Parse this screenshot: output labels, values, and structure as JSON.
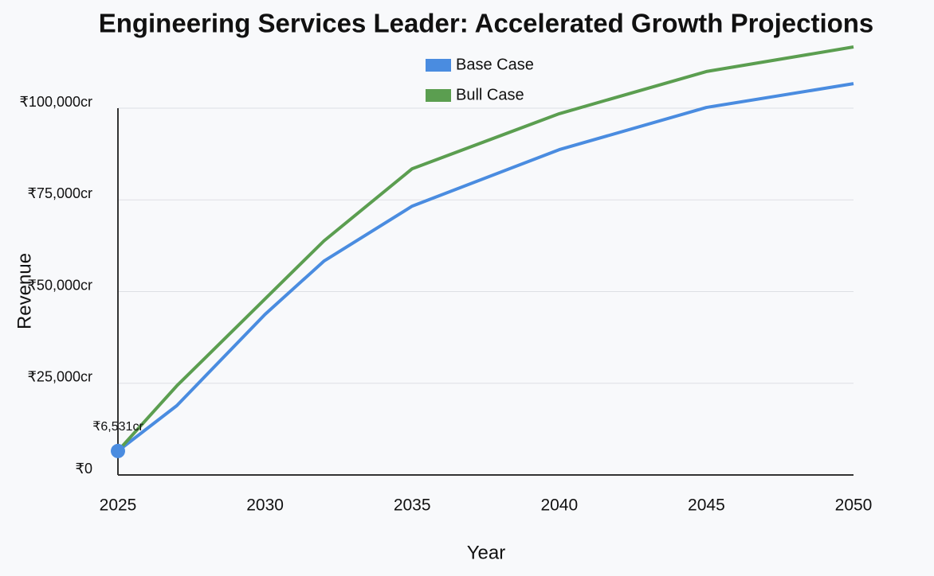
{
  "chart_data": {
    "type": "line",
    "title": "Engineering Services Leader: Accelerated Growth Projections",
    "x_label": "Year",
    "y_label": "Revenue",
    "x": [
      2025,
      2027,
      2030,
      2032,
      2035,
      2040,
      2045,
      2050
    ],
    "series": [
      {
        "name": "Base Case",
        "color": "#4a8ce0",
        "values": [
          6531,
          18900,
          43800,
          58300,
          73300,
          88700,
          100200,
          106700
        ]
      },
      {
        "name": "Bull Case",
        "color": "#5b9e50",
        "values": [
          6531,
          24300,
          48000,
          63800,
          83500,
          98500,
          110000,
          116700
        ]
      }
    ],
    "xlim": [
      2025,
      2050
    ],
    "xticks": [
      2025,
      2030,
      2035,
      2040,
      2045,
      2050
    ],
    "ylim": [
      0,
      100000
    ],
    "yticks": [
      {
        "value": 0,
        "label": "₹0"
      },
      {
        "value": 25000,
        "label": "₹25,000cr"
      },
      {
        "value": 50000,
        "label": "₹50,000cr"
      },
      {
        "value": 75000,
        "label": "₹75,000cr"
      },
      {
        "value": 100000,
        "label": "₹100,000cr"
      }
    ],
    "grid": true,
    "legend": "top",
    "annotations": [
      {
        "text": "₹6,531cr",
        "x": 2025,
        "y": 6531
      }
    ]
  }
}
